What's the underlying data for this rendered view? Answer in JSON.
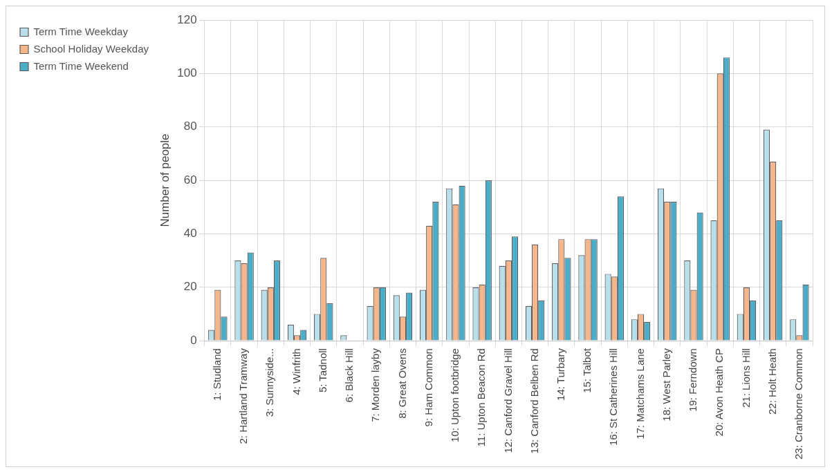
{
  "chart_data": {
    "type": "bar",
    "ylabel": "Number of people",
    "categories": [
      "1: Studland",
      "2: Hartland Tramway",
      "3: Sunnyside...",
      "4: Winfrith",
      "5: Tadnoll",
      "6: Black Hill",
      "7: Morden layby",
      "8: Great Ovens",
      "9: Ham Common",
      "10: Upton footbridge",
      "11: Upton Beacon Rd",
      "12: Canford Gravel Hill",
      "13: Canford Belben Rd",
      "14: Turbary",
      "15: Talbot",
      "16: St Catherines Hill",
      "17: Matchams Lane",
      "18: West Parley",
      "19: Ferndown",
      "20: Avon Heath CP",
      "21: Lions Hill",
      "22: Holt Heath",
      "23: Cranborne Common"
    ],
    "series": [
      {
        "name": "Term Time Weekday",
        "color": "#b9dfea",
        "values": [
          4,
          30,
          19,
          6,
          10,
          2,
          13,
          17,
          19,
          57,
          20,
          28,
          13,
          29,
          32,
          25,
          8,
          57,
          30,
          45,
          10,
          79,
          8
        ]
      },
      {
        "name": "School Holiday Weekday",
        "color": "#f6b68c",
        "values": [
          19,
          29,
          20,
          2,
          31,
          0,
          20,
          9,
          43,
          51,
          21,
          30,
          36,
          38,
          38,
          24,
          10,
          52,
          19,
          100,
          20,
          67,
          2
        ]
      },
      {
        "name": "Term Time Weekend",
        "color": "#4badc8",
        "values": [
          9,
          33,
          30,
          4,
          14,
          0,
          20,
          18,
          52,
          58,
          60,
          39,
          15,
          31,
          38,
          54,
          7,
          52,
          48,
          106,
          15,
          45,
          21
        ]
      }
    ],
    "ylim": [
      0,
      120
    ],
    "yticks": [
      0,
      20,
      40,
      60,
      80,
      100,
      120
    ],
    "grid": true,
    "legend": "top left"
  }
}
